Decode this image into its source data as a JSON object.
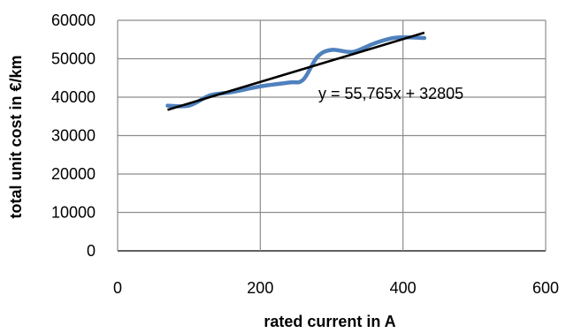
{
  "chart_data": {
    "type": "line",
    "title": "",
    "xlabel": "rated current in A",
    "ylabel": "total unit cost in €/km",
    "xlim": [
      0,
      600
    ],
    "ylim": [
      0,
      60000
    ],
    "x_ticks": [
      "0",
      "200",
      "400",
      "600"
    ],
    "y_ticks": [
      "0",
      "10000",
      "20000",
      "30000",
      "40000",
      "50000",
      "60000"
    ],
    "grid": true,
    "legend": "none",
    "series": [
      {
        "color": "#4f81bd",
        "style": "smooth",
        "x": [
          70,
          100,
          130,
          160,
          200,
          240,
          260,
          280,
          300,
          330,
          360,
          390,
          430
        ],
        "y": [
          37800,
          37800,
          40500,
          41300,
          42800,
          43800,
          44500,
          50500,
          52300,
          51800,
          54000,
          55500,
          55400
        ]
      }
    ],
    "trendline": {
      "type": "linear",
      "color": "#000000",
      "slope": 55.765,
      "intercept": 32805,
      "x_range": [
        70,
        430
      ],
      "equation_label": "y = 55,765x + 32805"
    }
  }
}
